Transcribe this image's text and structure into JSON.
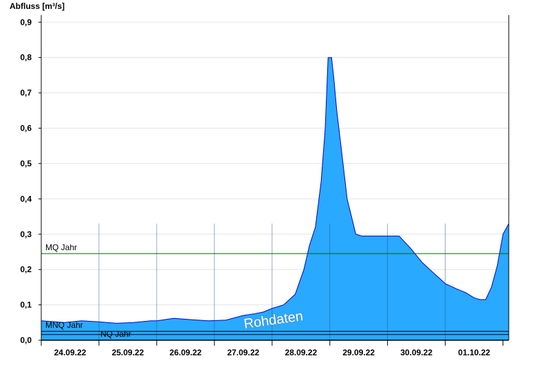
{
  "chart_data": {
    "type": "area",
    "ylabel": "Abfluss [m³/s]",
    "ylim": [
      0,
      0.92
    ],
    "yticks": [
      "0,0",
      "0,1",
      "0,2",
      "0,3",
      "0,4",
      "0,5",
      "0,6",
      "0,7",
      "0,8",
      "0,9"
    ],
    "xlim_days": [
      0,
      8.1
    ],
    "x_tick_labels": [
      "24.09.22",
      "25.09.22",
      "26.09.22",
      "27.09.22",
      "28.09.22",
      "29.09.22",
      "30.09.22",
      "01.10.22"
    ],
    "grid": true,
    "area_color": "#29a9ff",
    "line_color": "#0000cc",
    "watermark": "Rohdaten",
    "reference_lines": [
      {
        "label": "MQ Jahr",
        "value": 0.245,
        "color": "#006600"
      },
      {
        "label": "MNQ Jahr",
        "value": 0.025,
        "color": "#000000"
      },
      {
        "label": "NQ Jahr",
        "value": 0.016,
        "color": "#000000"
      }
    ],
    "series": [
      {
        "x": [
          0,
          0.4,
          0.7,
          1.0,
          1.3,
          1.6,
          1.9,
          2.0,
          2.3,
          2.6,
          2.9,
          3.2,
          3.5,
          3.7,
          3.85,
          4.0,
          4.2,
          4.4,
          4.55,
          4.65,
          4.75,
          4.85,
          4.92,
          4.97,
          5.03,
          5.07,
          5.12,
          5.2,
          5.3,
          5.45,
          5.55,
          5.8,
          6.0,
          6.2,
          6.4,
          6.6,
          6.8,
          7.0,
          7.2,
          7.35,
          7.5,
          7.6,
          7.7,
          7.8,
          7.9,
          8.0,
          8.1
        ],
        "y": [
          0.055,
          0.05,
          0.055,
          0.052,
          0.048,
          0.05,
          0.055,
          0.055,
          0.062,
          0.058,
          0.055,
          0.057,
          0.07,
          0.075,
          0.08,
          0.09,
          0.1,
          0.13,
          0.2,
          0.27,
          0.32,
          0.45,
          0.6,
          0.8,
          0.8,
          0.74,
          0.65,
          0.54,
          0.4,
          0.3,
          0.295,
          0.295,
          0.295,
          0.295,
          0.26,
          0.22,
          0.19,
          0.16,
          0.145,
          0.135,
          0.12,
          0.115,
          0.115,
          0.15,
          0.21,
          0.3,
          0.33
        ]
      }
    ]
  }
}
